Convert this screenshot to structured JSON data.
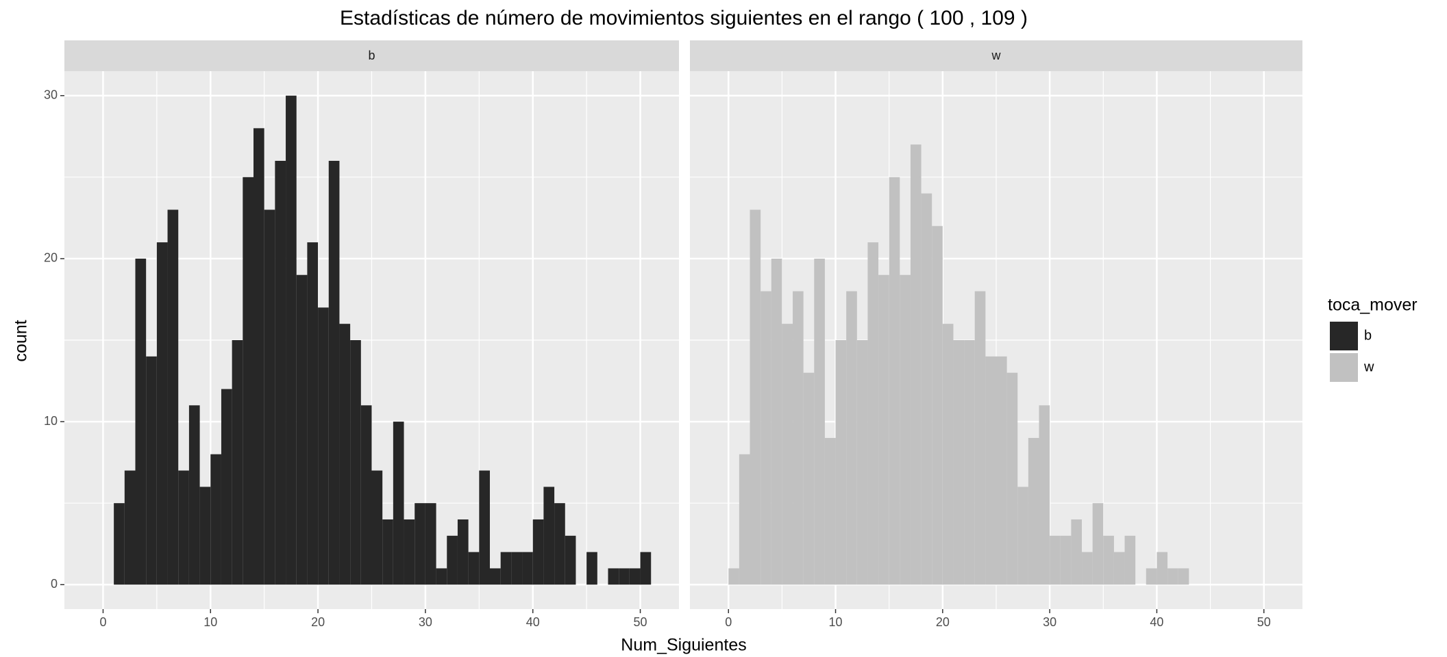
{
  "chart_data": {
    "type": "histogram",
    "title": "Estadísticas de número de movimientos siguientes en el rango ( 100 , 109 )",
    "xlabel": "Num_Siguientes",
    "ylabel": "count",
    "legend_title": "toca_mover",
    "xlim": [
      -3.6,
      53.6
    ],
    "ylim": [
      -1.5,
      31.5
    ],
    "xticks": [
      0,
      10,
      20,
      30,
      40,
      50
    ],
    "yticks": [
      0,
      10,
      20,
      30
    ],
    "grid": true,
    "legend": "right",
    "series": [
      {
        "name": "b",
        "color": "#272727",
        "bins": [
          0,
          1,
          2,
          3,
          4,
          5,
          6,
          7,
          8,
          9,
          10,
          11,
          12,
          13,
          14,
          15,
          16,
          17,
          18,
          19,
          20,
          21,
          22,
          23,
          24,
          25,
          26,
          27,
          28,
          29,
          30,
          31,
          32,
          33,
          34,
          35,
          36,
          37,
          38,
          39,
          40,
          41,
          42,
          43,
          44,
          45,
          46,
          47,
          48,
          49,
          50,
          51
        ],
        "values": [
          0,
          5,
          7,
          20,
          14,
          21,
          23,
          7,
          11,
          6,
          8,
          12,
          15,
          25,
          28,
          23,
          26,
          30,
          19,
          21,
          17,
          26,
          16,
          15,
          11,
          7,
          4,
          10,
          4,
          5,
          5,
          1,
          3,
          4,
          2,
          7,
          1,
          2,
          2,
          2,
          4,
          6,
          5,
          3,
          0,
          2,
          0,
          1,
          1,
          1,
          2
        ]
      },
      {
        "name": "w",
        "color": "#c1c1c1",
        "bins": [
          0,
          1,
          2,
          3,
          4,
          5,
          6,
          7,
          8,
          9,
          10,
          11,
          12,
          13,
          14,
          15,
          16,
          17,
          18,
          19,
          20,
          21,
          22,
          23,
          24,
          25,
          26,
          27,
          28,
          29,
          30,
          31,
          32,
          33,
          34,
          35,
          36,
          37,
          38,
          39,
          40,
          41,
          42,
          43,
          44,
          45,
          46,
          47,
          48,
          49,
          50,
          51
        ],
        "values": [
          1,
          8,
          23,
          18,
          20,
          16,
          18,
          13,
          20,
          9,
          15,
          18,
          15,
          21,
          19,
          25,
          19,
          27,
          24,
          22,
          16,
          15,
          15,
          18,
          14,
          14,
          13,
          6,
          9,
          11,
          3,
          3,
          4,
          2,
          5,
          3,
          2,
          3,
          0,
          1,
          2,
          1,
          1,
          0,
          0,
          0,
          0,
          0,
          0,
          0,
          0
        ]
      }
    ]
  }
}
